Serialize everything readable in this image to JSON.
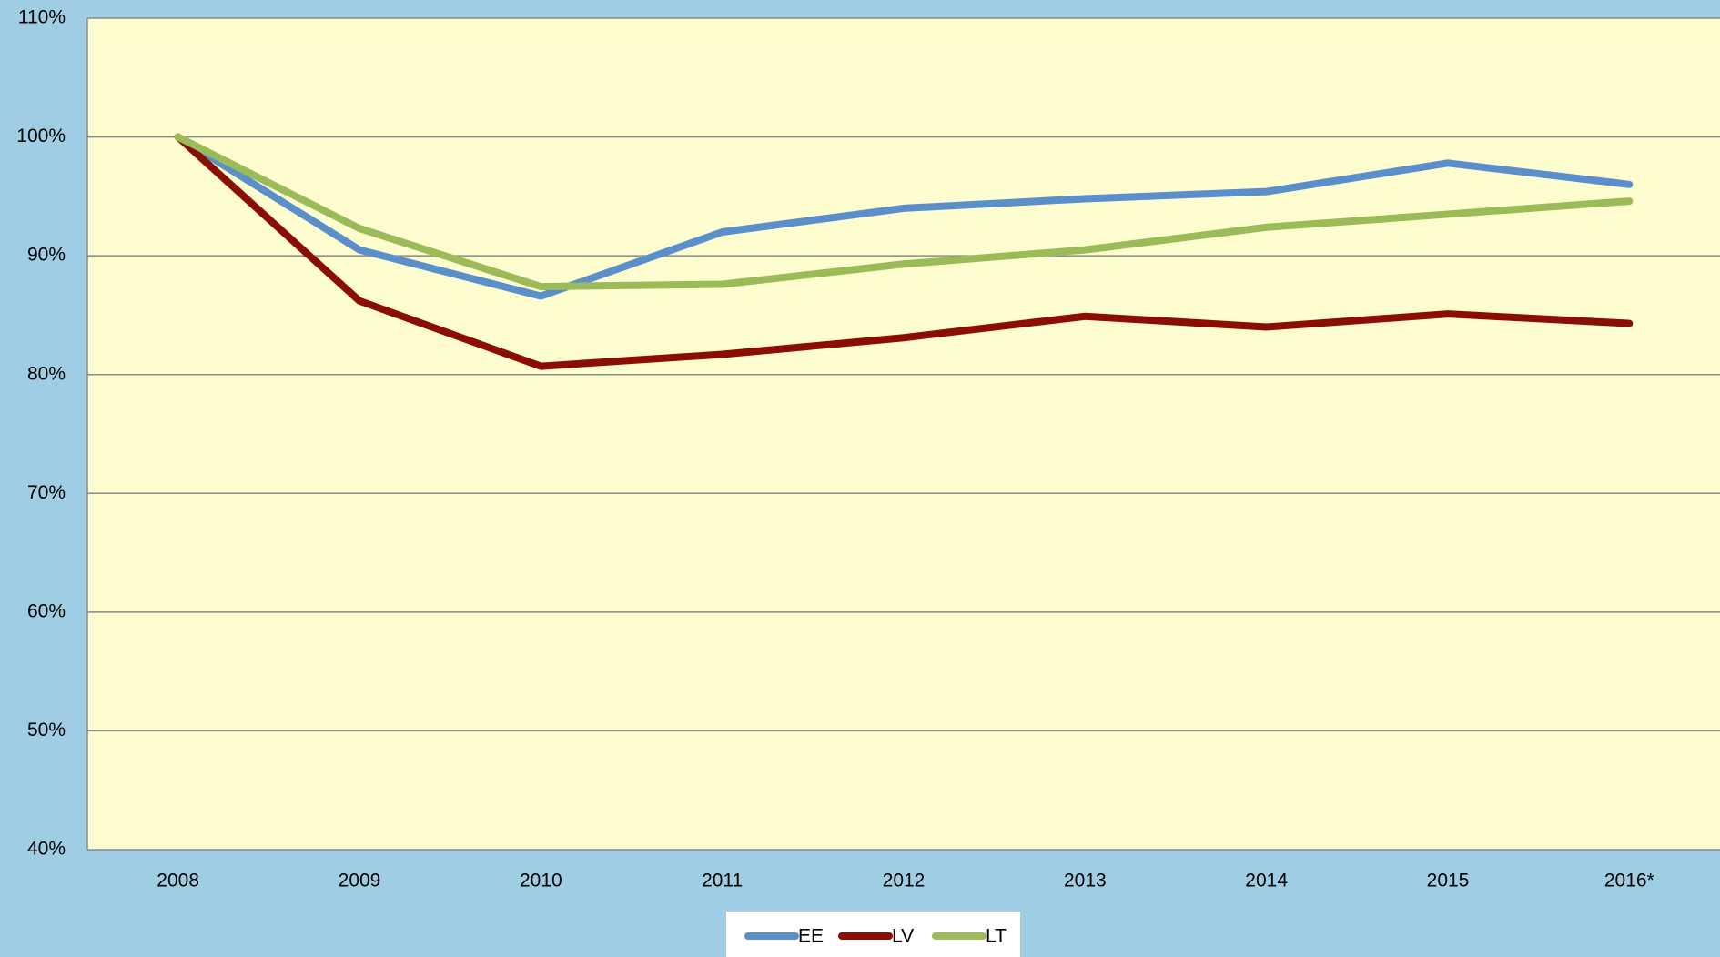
{
  "chart_data": {
    "type": "line",
    "categories": [
      "2008",
      "2009",
      "2010",
      "2011",
      "2012",
      "2013",
      "2014",
      "2015",
      "2016*"
    ],
    "series": [
      {
        "name": "EE",
        "color": "#5b8fc9",
        "values": [
          100,
          90.5,
          86.6,
          92.0,
          94.0,
          94.8,
          95.4,
          97.8,
          96.0
        ]
      },
      {
        "name": "LV",
        "color": "#8b0e04",
        "values": [
          100,
          86.2,
          80.7,
          81.7,
          83.1,
          84.9,
          84.0,
          85.1,
          84.3
        ]
      },
      {
        "name": "LT",
        "color": "#9bbb59",
        "values": [
          100,
          92.3,
          87.4,
          87.6,
          89.3,
          90.5,
          92.4,
          93.5,
          94.6
        ]
      }
    ],
    "ylim": [
      40,
      110
    ],
    "yticks": [
      {
        "value": 40,
        "label": "40%"
      },
      {
        "value": 50,
        "label": "50%"
      },
      {
        "value": 60,
        "label": "60%"
      },
      {
        "value": 70,
        "label": "70%"
      },
      {
        "value": 80,
        "label": "80%"
      },
      {
        "value": 90,
        "label": "90%"
      },
      {
        "value": 100,
        "label": "100%"
      },
      {
        "value": 110,
        "label": "110%"
      }
    ],
    "grid": true,
    "legend": "bottom"
  }
}
